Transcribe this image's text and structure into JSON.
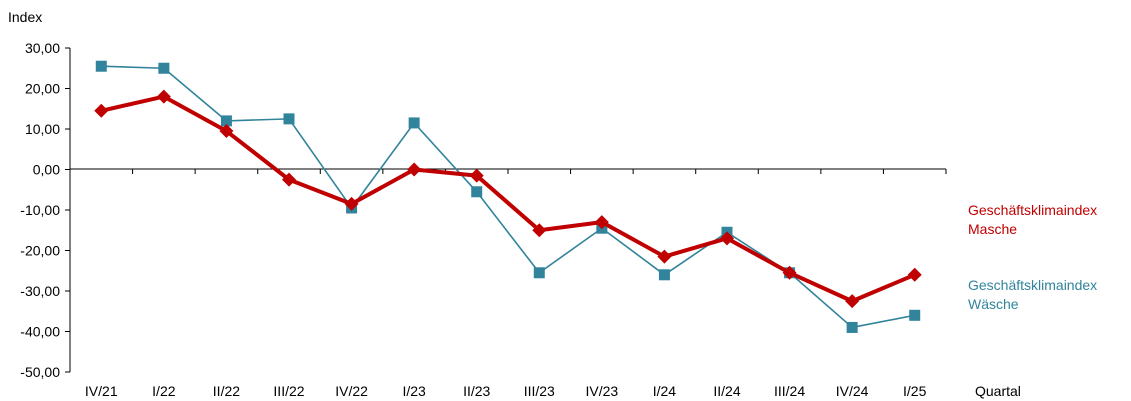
{
  "chart_data": {
    "type": "line",
    "ylabel": "Index",
    "xlabel": "Quartal",
    "ylim": [
      -50,
      30
    ],
    "yticks": [
      "30,00",
      "20,00",
      "10,00",
      "0,00",
      "-10,00",
      "-20,00",
      "-30,00",
      "-40,00",
      "-50,00"
    ],
    "categories": [
      "IV/21",
      "I/22",
      "II/22",
      "III/22",
      "IV/22",
      "I/23",
      "II/23",
      "III/23",
      "IV/23",
      "I/24",
      "II/24",
      "III/24",
      "IV/24",
      "I/25"
    ],
    "grid": false,
    "legend_position": "right",
    "series": [
      {
        "name": "Geschäftsklimaindex Masche",
        "legend_line1": "Geschäftsklimaindex",
        "legend_line2": "Masche",
        "color": "#c00000",
        "marker": "diamond",
        "values": [
          14.5,
          18.0,
          9.5,
          -2.5,
          -8.5,
          0.0,
          -1.5,
          -15.0,
          -13.0,
          -21.5,
          -17.0,
          -25.5,
          -32.5,
          -26.0
        ]
      },
      {
        "name": "Geschäftsklimaindex Wäsche",
        "legend_line1": "Geschäftsklimaindex",
        "legend_line2": "Wäsche",
        "color": "#31849b",
        "marker": "square",
        "values": [
          25.5,
          25.0,
          12.0,
          12.5,
          -9.5,
          11.5,
          -5.5,
          -25.5,
          -14.5,
          -26.0,
          -15.5,
          -25.5,
          -39.0,
          -36.0
        ]
      }
    ]
  }
}
